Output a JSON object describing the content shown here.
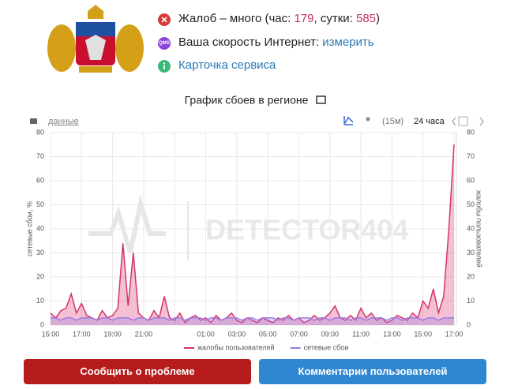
{
  "status": {
    "prefix": "Жалоб – много (час: ",
    "hour": 179,
    "mid": ", сутки: ",
    "day": 585,
    "suffix": ")"
  },
  "speed": {
    "label": "Ваша скорость Интернет: ",
    "link": "измерить",
    "icon": "QMS"
  },
  "card": "Карточка сервиса",
  "toolbar": {
    "data": "данные",
    "interval": "(15м)",
    "period": "24 часа"
  },
  "watermark": "DETECTOR404",
  "buttons": [
    "Сообщить о проблеме",
    "Комментарии пользователей"
  ],
  "chart_data": {
    "type": "line",
    "title": "График сбоев в регионе",
    "ylabel": "сетевые сбои, %",
    "y2label": "жалобы пользователей",
    "categories": [
      "15:00",
      null,
      null,
      null,
      null,
      null,
      "17:00",
      null,
      null,
      null,
      null,
      null,
      "19:00",
      null,
      null,
      null,
      null,
      null,
      "21:00",
      null,
      null,
      null,
      null,
      null,
      null,
      null,
      null,
      null,
      null,
      null,
      "01:00",
      null,
      null,
      null,
      null,
      null,
      "03:00",
      null,
      null,
      null,
      null,
      null,
      "05:00",
      null,
      null,
      null,
      null,
      null,
      "07:00",
      null,
      null,
      null,
      null,
      null,
      "09:00",
      null,
      null,
      null,
      null,
      null,
      "11:00",
      null,
      null,
      null,
      null,
      null,
      "13:00",
      null,
      null,
      null,
      null,
      null,
      "15:00",
      null,
      null,
      null,
      null,
      null,
      "17:00"
    ],
    "series": [
      {
        "name": "жалобы пользователей",
        "color": "#d6336c",
        "axis": "y2",
        "values": [
          5,
          3,
          6,
          7,
          13,
          5,
          9,
          4,
          3,
          2,
          6,
          3,
          4,
          7,
          34,
          8,
          30,
          5,
          3,
          2,
          6,
          3,
          12,
          3,
          2,
          5,
          1,
          3,
          4,
          2,
          3,
          1,
          4,
          2,
          3,
          5,
          2,
          1,
          3,
          2,
          1,
          3,
          2,
          1,
          3,
          2,
          4,
          2,
          3,
          1,
          2,
          4,
          2,
          3,
          5,
          8,
          3,
          2,
          4,
          2,
          7,
          3,
          5,
          2,
          3,
          1,
          2,
          4,
          3,
          2,
          5,
          3,
          10,
          7,
          15,
          5,
          12,
          40,
          75
        ]
      },
      {
        "name": "сетевые сбои",
        "color": "#9b7be0",
        "values": [
          3,
          3,
          2,
          3,
          3,
          2,
          3,
          3,
          3,
          2,
          3,
          3,
          2,
          3,
          3,
          3,
          2,
          3,
          3,
          2,
          3,
          3,
          3,
          2,
          3,
          3,
          2,
          3,
          3,
          3,
          2,
          3,
          3,
          2,
          3,
          3,
          3,
          2,
          3,
          3,
          2,
          3,
          3,
          3,
          2,
          3,
          3,
          2,
          3,
          3,
          3,
          2,
          3,
          3,
          2,
          3,
          3,
          3,
          2,
          3,
          3,
          2,
          3,
          3,
          3,
          2,
          3,
          3,
          2,
          3,
          3,
          3,
          2,
          3,
          3,
          2,
          3,
          3,
          3
        ]
      }
    ],
    "ylim": [
      0,
      80
    ],
    "yticks": [
      0,
      10,
      20,
      30,
      40,
      50,
      60,
      70,
      80
    ],
    "y2lim": [
      0,
      80
    ],
    "y2ticks": [
      0,
      10,
      20,
      30,
      40,
      50,
      60,
      70,
      80
    ],
    "grid": true,
    "legend": "bottom"
  }
}
